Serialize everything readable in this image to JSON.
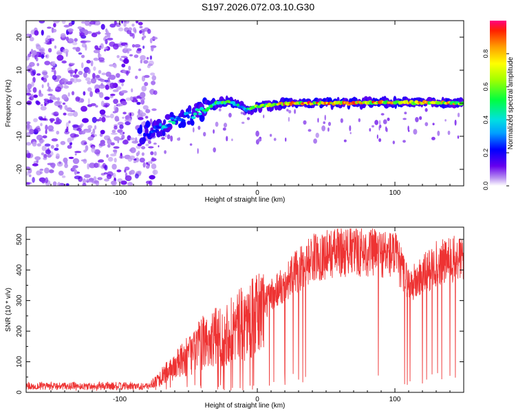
{
  "title": "S197.2026.072.03.10.G30",
  "chart_data": [
    {
      "type": "heatmap",
      "title": "S197.2026.072.03.10.G30",
      "xlabel": "Height of straight line (km)",
      "ylabel": "Frequency (Hz)",
      "xlim": [
        -168,
        150
      ],
      "ylim": [
        -25,
        25
      ],
      "xticks": [
        -100,
        0,
        100
      ],
      "xtick_labels": [
        "-100",
        "0",
        "100"
      ],
      "yticks": [
        -20,
        -10,
        0,
        10,
        20
      ],
      "ytick_labels": [
        "-20",
        "-10",
        "0",
        "10",
        "20"
      ],
      "colorbar": {
        "label": "Normalized spectral amplitude",
        "range": [
          0,
          1
        ],
        "ticks": [
          0.0,
          0.2,
          0.4,
          0.6,
          0.8
        ],
        "tick_labels": [
          "0.0",
          "0.2",
          "0.4",
          "0.6",
          "0.8"
        ]
      },
      "ridge": {
        "x": [
          -80,
          -70,
          -60,
          -50,
          -40,
          -30,
          -20,
          -12,
          -8,
          0,
          20,
          60,
          100,
          150
        ],
        "freq": [
          -9,
          -7,
          -5,
          -4,
          -2,
          0,
          0.5,
          -1,
          -2,
          -1,
          0,
          0,
          0.3,
          0
        ],
        "peak_amplitude": [
          0.25,
          0.4,
          0.45,
          0.4,
          0.5,
          0.55,
          0.6,
          0.5,
          0.45,
          0.8,
          0.95,
          0.95,
          0.9,
          0.85
        ]
      },
      "noise_region": {
        "x": [
          -168,
          -80
        ],
        "freq": [
          -25,
          25
        ],
        "amplitude": [
          0.0,
          0.2
        ]
      }
    },
    {
      "type": "line",
      "xlabel": "Height of straight line (km)",
      "ylabel": "SNR (10 * v/v)",
      "xlim": [
        -168,
        150
      ],
      "ylim": [
        0,
        540
      ],
      "xticks": [
        -100,
        0,
        100
      ],
      "xtick_labels": [
        "-100",
        "0",
        "100"
      ],
      "yticks": [
        0,
        100,
        200,
        300,
        400,
        500
      ],
      "ytick_labels": [
        "0",
        "100",
        "200",
        "300",
        "400",
        "500"
      ],
      "color": "#ee3333",
      "envelope": {
        "x": [
          -168,
          -80,
          -70,
          -50,
          -40,
          -20,
          0,
          10,
          20,
          30,
          40,
          50,
          60,
          80,
          100,
          110,
          115,
          130,
          150
        ],
        "y": [
          20,
          20,
          50,
          120,
          160,
          200,
          250,
          320,
          360,
          400,
          440,
          450,
          460,
          460,
          450,
          350,
          360,
          420,
          440
        ]
      },
      "dropouts_x": [
        12,
        20,
        26,
        30,
        33,
        35,
        88,
        107,
        109,
        111,
        120,
        123,
        127,
        131,
        134,
        140,
        144
      ]
    }
  ]
}
